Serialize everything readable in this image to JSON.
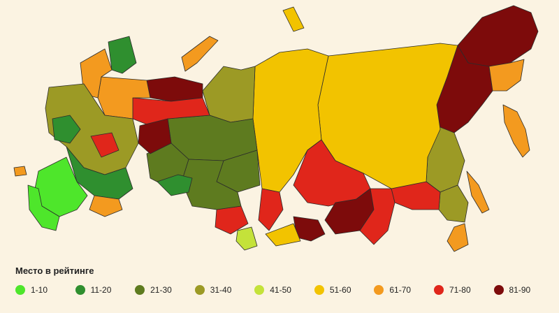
{
  "legend": {
    "title": "Место в рейтинге",
    "items": [
      {
        "label": "1-10",
        "color": "#4ee62b"
      },
      {
        "label": "11-20",
        "color": "#2f8f2f"
      },
      {
        "label": "21-30",
        "color": "#5e7b1f"
      },
      {
        "label": "31-40",
        "color": "#9c9a25"
      },
      {
        "label": "41-50",
        "color": "#c4e23a"
      },
      {
        "label": "51-60",
        "color": "#f2c300"
      },
      {
        "label": "61-70",
        "color": "#f39a1f"
      },
      {
        "label": "71-80",
        "color": "#e0261b"
      },
      {
        "label": "81-90",
        "color": "#7d0b0b"
      }
    ]
  },
  "map": {
    "regions": [
      {
        "id": "chukotka",
        "rank_group": "81-90"
      },
      {
        "id": "yakutia-east",
        "rank_group": "81-90"
      },
      {
        "id": "magadan",
        "rank_group": "61-70"
      },
      {
        "id": "kamchatka",
        "rank_group": "61-70"
      },
      {
        "id": "khabarovsk",
        "rank_group": "31-40"
      },
      {
        "id": "amur",
        "rank_group": "71-80"
      },
      {
        "id": "primorye",
        "rank_group": "31-40"
      },
      {
        "id": "sakhalin",
        "rank_group": "61-70"
      },
      {
        "id": "krasnoyarsk",
        "rank_group": "51-60"
      },
      {
        "id": "yakutia",
        "rank_group": "51-60"
      },
      {
        "id": "irkutsk",
        "rank_group": "71-80"
      },
      {
        "id": "buryatia",
        "rank_group": "81-90"
      },
      {
        "id": "zabaykalsky",
        "rank_group": "71-80"
      },
      {
        "id": "tuva",
        "rank_group": "81-90"
      },
      {
        "id": "khakassia",
        "rank_group": "71-80"
      },
      {
        "id": "altai",
        "rank_group": "41-50"
      },
      {
        "id": "yamal",
        "rank_group": "31-40"
      },
      {
        "id": "khmao",
        "rank_group": "21-30"
      },
      {
        "id": "tomsk",
        "rank_group": "21-30"
      },
      {
        "id": "novosibirsk",
        "rank_group": "21-30"
      },
      {
        "id": "omsk",
        "rank_group": "21-30"
      },
      {
        "id": "tyumen",
        "rank_group": "11-20"
      },
      {
        "id": "kemerovo",
        "rank_group": "71-80"
      },
      {
        "id": "komi",
        "rank_group": "71-80"
      },
      {
        "id": "nenets",
        "rank_group": "81-90"
      },
      {
        "id": "perm",
        "rank_group": "81-90"
      },
      {
        "id": "arkhangelsk",
        "rank_group": "61-70"
      },
      {
        "id": "karelia",
        "rank_group": "61-70"
      },
      {
        "id": "murmansk",
        "rank_group": "11-20"
      },
      {
        "id": "central-russia",
        "rank_group": "31-40"
      },
      {
        "id": "volga",
        "rank_group": "11-20"
      },
      {
        "id": "south",
        "rank_group": "1-10"
      },
      {
        "id": "caucasus",
        "rank_group": "1-10"
      }
    ]
  }
}
